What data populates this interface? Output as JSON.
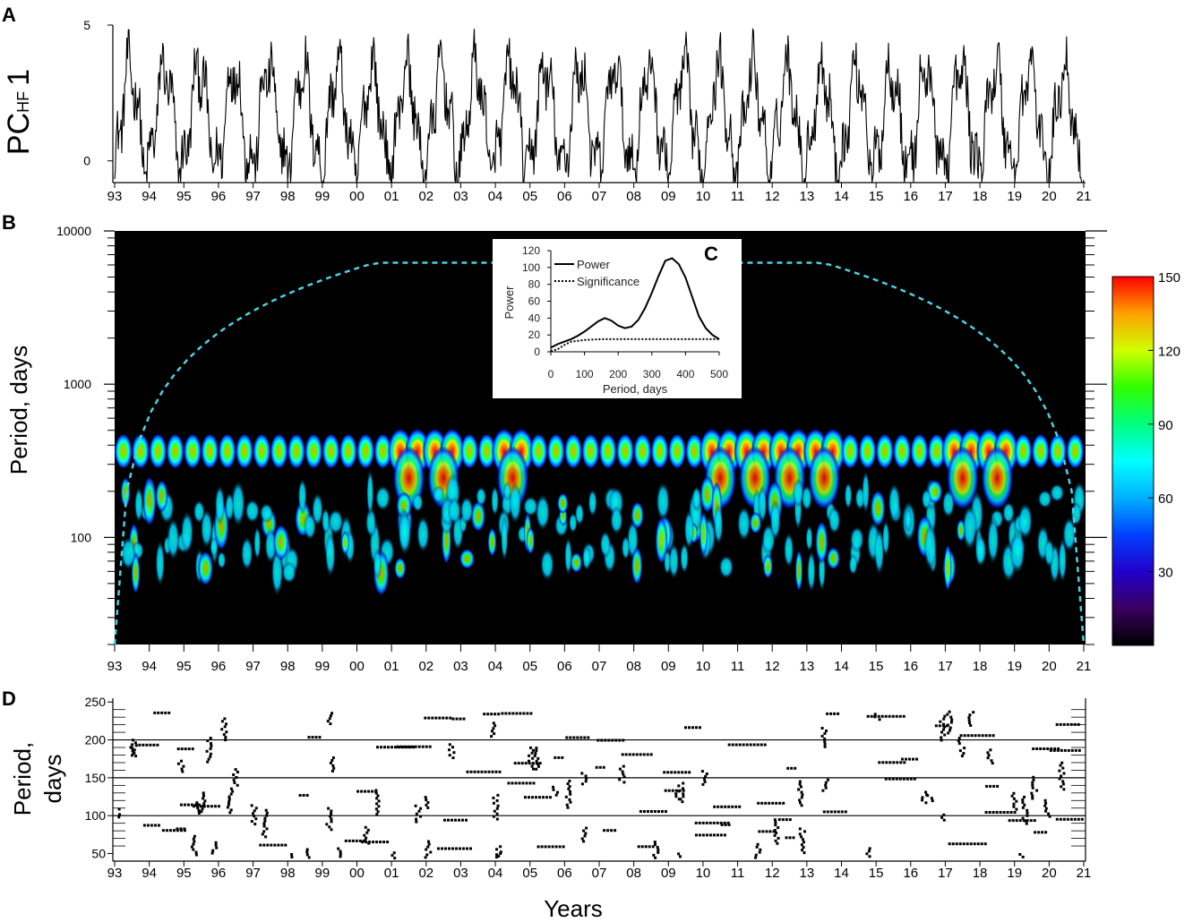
{
  "panels": {
    "a_letter": "A",
    "b_letter": "B",
    "c_letter": "C",
    "d_letter": "D"
  },
  "years": [
    "93",
    "94",
    "95",
    "96",
    "97",
    "98",
    "99",
    "00",
    "01",
    "02",
    "03",
    "04",
    "05",
    "06",
    "07",
    "08",
    "09",
    "10",
    "11",
    "12",
    "13",
    "14",
    "15",
    "16",
    "17",
    "18",
    "19",
    "20",
    "21"
  ],
  "panel_a": {
    "ylabel_main": "PC",
    "ylabel_sub": "HF",
    "ylabel_num": "1"
  },
  "panel_b": {
    "ylabel": "Period, days",
    "colorbar": {
      "ticks": [
        "150",
        "120",
        "90",
        "60",
        "30"
      ],
      "tick_values": [
        150,
        120,
        90,
        60,
        30
      ],
      "range": [
        0,
        150
      ],
      "colors": [
        "#000000",
        "#5a0090",
        "#0000ff",
        "#0090ff",
        "#00ffff",
        "#00ff80",
        "#00ff00",
        "#a0ff00",
        "#ffff00",
        "#ffa000",
        "#ff0000"
      ]
    },
    "cone_color": "#4dd0e1"
  },
  "panel_c": {
    "ylabel": "Power",
    "xlabel": "Period, days",
    "legend_power": "Power",
    "legend_sig": "Significance"
  },
  "panel_d": {
    "ylabel_1": "Period,",
    "ylabel_2": "days",
    "xlabel": "Years"
  },
  "chart_data": [
    {
      "type": "line",
      "panel": "A",
      "title": "",
      "xlabel": "",
      "ylabel": "PC_HF 1",
      "x_range": [
        "1993",
        "2021"
      ],
      "ylim": [
        -0.8,
        5.0
      ],
      "y_ticks": [
        0,
        5
      ],
      "y_tick_labels": [
        "0",
        "5"
      ],
      "x_ticks": [
        "93",
        "94",
        "95",
        "96",
        "97",
        "98",
        "99",
        "00",
        "01",
        "02",
        "03",
        "04",
        "05",
        "06",
        "07",
        "08",
        "09",
        "10",
        "11",
        "12",
        "13",
        "14",
        "15",
        "16",
        "17",
        "18",
        "19",
        "20",
        "21"
      ],
      "series": [
        {
          "annual_cycle_mean": 1.6,
          "annual_cycle_amplitude": 1.8,
          "values_min": -0.8,
          "values_max": 5.0
        }
      ]
    },
    {
      "type": "heatmap",
      "panel": "B",
      "title": "",
      "xlabel": "",
      "ylabel": "Period, days",
      "x_range": [
        "1993",
        "2021"
      ],
      "y_scale": "log",
      "ylim": [
        20,
        10000
      ],
      "y_ticks": [
        100,
        1000,
        10000
      ],
      "y_tick_labels": [
        "100",
        "1000",
        "10000"
      ],
      "color_range": [
        0,
        150
      ],
      "x_ticks": [
        "93",
        "94",
        "95",
        "96",
        "97",
        "98",
        "99",
        "00",
        "01",
        "02",
        "03",
        "04",
        "05",
        "06",
        "07",
        "08",
        "09",
        "10",
        "11",
        "12",
        "13",
        "14",
        "15",
        "16",
        "17",
        "18",
        "19",
        "20",
        "21"
      ],
      "dominant_period_days": 365,
      "secondary_band_days": [
        100,
        200
      ],
      "strong_years": [
        2001,
        2002,
        2004,
        2010,
        2011,
        2012,
        2013,
        2017,
        2018
      ]
    },
    {
      "type": "line",
      "panel": "C",
      "title": "",
      "xlabel": "Period, days",
      "ylabel": "Power",
      "xlim": [
        0,
        500
      ],
      "ylim": [
        0,
        120
      ],
      "x_ticks": [
        0,
        100,
        200,
        300,
        400,
        500
      ],
      "y_ticks": [
        0,
        20,
        40,
        60,
        80,
        100,
        120
      ],
      "legend": "top-left",
      "series": [
        {
          "name": "Power",
          "style": "solid",
          "x": [
            0,
            20,
            40,
            60,
            80,
            100,
            120,
            140,
            160,
            180,
            200,
            220,
            240,
            260,
            280,
            300,
            320,
            340,
            360,
            380,
            400,
            420,
            440,
            460,
            480,
            500
          ],
          "y": [
            5,
            9,
            12,
            15,
            19,
            24,
            30,
            36,
            40,
            37,
            31,
            28,
            30,
            38,
            52,
            70,
            90,
            108,
            111,
            104,
            88,
            65,
            42,
            28,
            20,
            15
          ]
        },
        {
          "name": "Significance",
          "style": "dotted",
          "x": [
            0,
            20,
            40,
            60,
            80,
            100,
            150,
            200,
            250,
            300,
            350,
            400,
            450,
            500
          ],
          "y": [
            1,
            3,
            8,
            12,
            13,
            14,
            15,
            15,
            15,
            15,
            15,
            15,
            15,
            15
          ]
        }
      ]
    },
    {
      "type": "scatter",
      "panel": "D",
      "title": "",
      "xlabel": "Years",
      "ylabel": "Period, days",
      "x_range": [
        "1993",
        "2021"
      ],
      "ylim": [
        40,
        255
      ],
      "y_ticks": [
        50,
        100,
        150,
        200,
        250
      ],
      "y_tick_labels": [
        "50",
        "100",
        "150",
        "200",
        "250"
      ],
      "reference_lines_y": [
        100,
        150,
        200
      ],
      "x_ticks": [
        "93",
        "94",
        "95",
        "96",
        "97",
        "98",
        "99",
        "00",
        "01",
        "02",
        "03",
        "04",
        "05",
        "06",
        "07",
        "08",
        "09",
        "10",
        "11",
        "12",
        "13",
        "14",
        "15",
        "16",
        "17",
        "18",
        "19",
        "20",
        "21"
      ]
    }
  ]
}
